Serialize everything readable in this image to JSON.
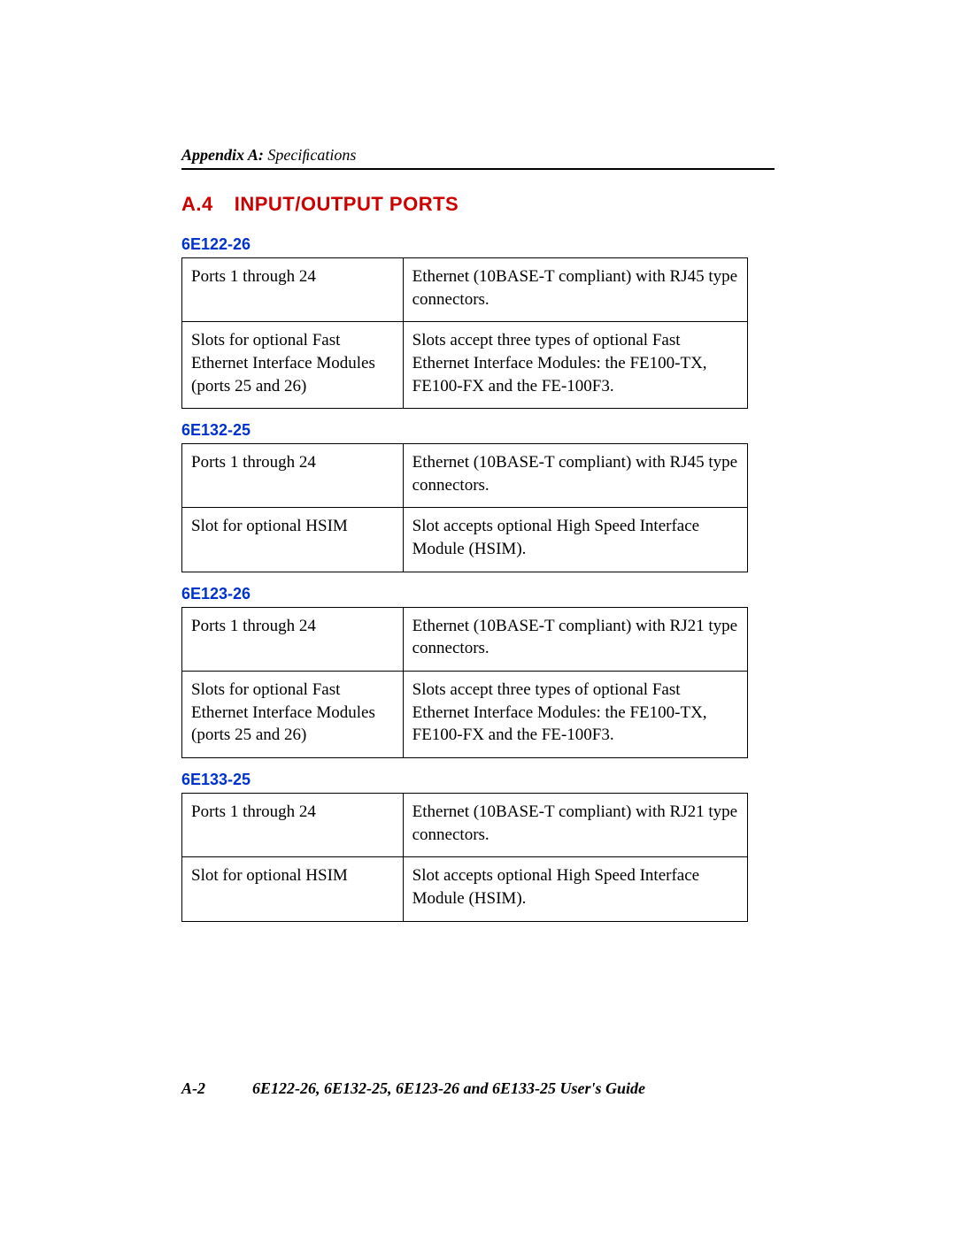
{
  "header": {
    "bold_part": "Appendix A: ",
    "normal_part": "Speciﬁcations"
  },
  "section": {
    "number": "A.4",
    "title": "INPUT/OUTPUT PORTS"
  },
  "tables": [
    {
      "label": "6E122-26",
      "rows": [
        {
          "c1": "Ports 1 through 24",
          "c2": "Ethernet (10BASE-T compliant) with RJ45 type connectors."
        },
        {
          "c1": "Slots for optional Fast Ethernet Interface Modules (ports 25 and 26)",
          "c2": "Slots accept three types of optional Fast Ethernet Interface Modules: the FE100-TX, FE100-FX and the FE-100F3."
        }
      ]
    },
    {
      "label": "6E132-25",
      "rows": [
        {
          "c1": "Ports 1 through 24",
          "c2": "Ethernet (10BASE-T compliant) with RJ45 type connectors."
        },
        {
          "c1": "Slot for optional HSIM",
          "c2": "Slot accepts optional High Speed Interface Module (HSIM)."
        }
      ]
    },
    {
      "label": "6E123-26",
      "rows": [
        {
          "c1": "Ports 1 through 24",
          "c2": "Ethernet (10BASE-T compliant) with RJ21 type connectors."
        },
        {
          "c1": "Slots for optional Fast Ethernet Interface Modules (ports 25 and 26)",
          "c2": "Slots accept three types of optional Fast Ethernet Interface Modules: the FE100-TX, FE100-FX and the FE-100F3."
        }
      ]
    },
    {
      "label": "6E133-25",
      "rows": [
        {
          "c1": "Ports 1 through 24",
          "c2": "Ethernet (10BASE-T compliant) with RJ21 type connectors."
        },
        {
          "c1": "Slot for optional HSIM",
          "c2": "Slot accepts optional High Speed Interface Module (HSIM)."
        }
      ]
    }
  ],
  "footer": {
    "page": "A-2",
    "title": "6E122-26, 6E132-25, 6E123-26 and 6E133-25 User's Guide"
  },
  "colors": {
    "heading_red": "#cc0000",
    "subhead_blue": "#0033cc",
    "text_black": "#000000",
    "background": "#ffffff"
  }
}
